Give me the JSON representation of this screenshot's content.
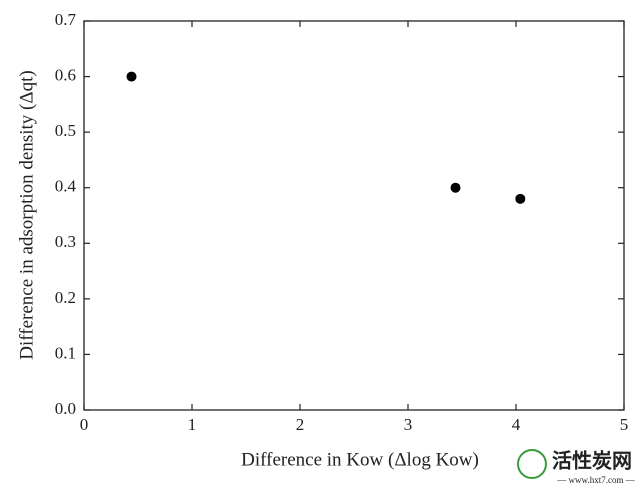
{
  "chart_data": {
    "type": "scatter",
    "x_label": "Difference in Kow (Δlog Kow)",
    "y_label": "Difference in adsorption density (Δqt)",
    "x": [
      0.44,
      3.44,
      4.04
    ],
    "values": [
      0.6,
      0.4,
      0.38
    ],
    "color": "#000000",
    "xlim": [
      0,
      5
    ],
    "xticks": [
      0,
      1,
      2,
      3,
      4,
      5
    ],
    "ylim": [
      0,
      0.7
    ],
    "yticks": [
      {
        "value": 0,
        "label": "0.0"
      },
      0.1,
      0.2,
      0.3,
      0.4,
      0.5,
      0.6,
      0.7
    ],
    "grid": false
  },
  "watermark": {
    "name": "活性炭网",
    "url": "— www.hxt7.com —"
  }
}
